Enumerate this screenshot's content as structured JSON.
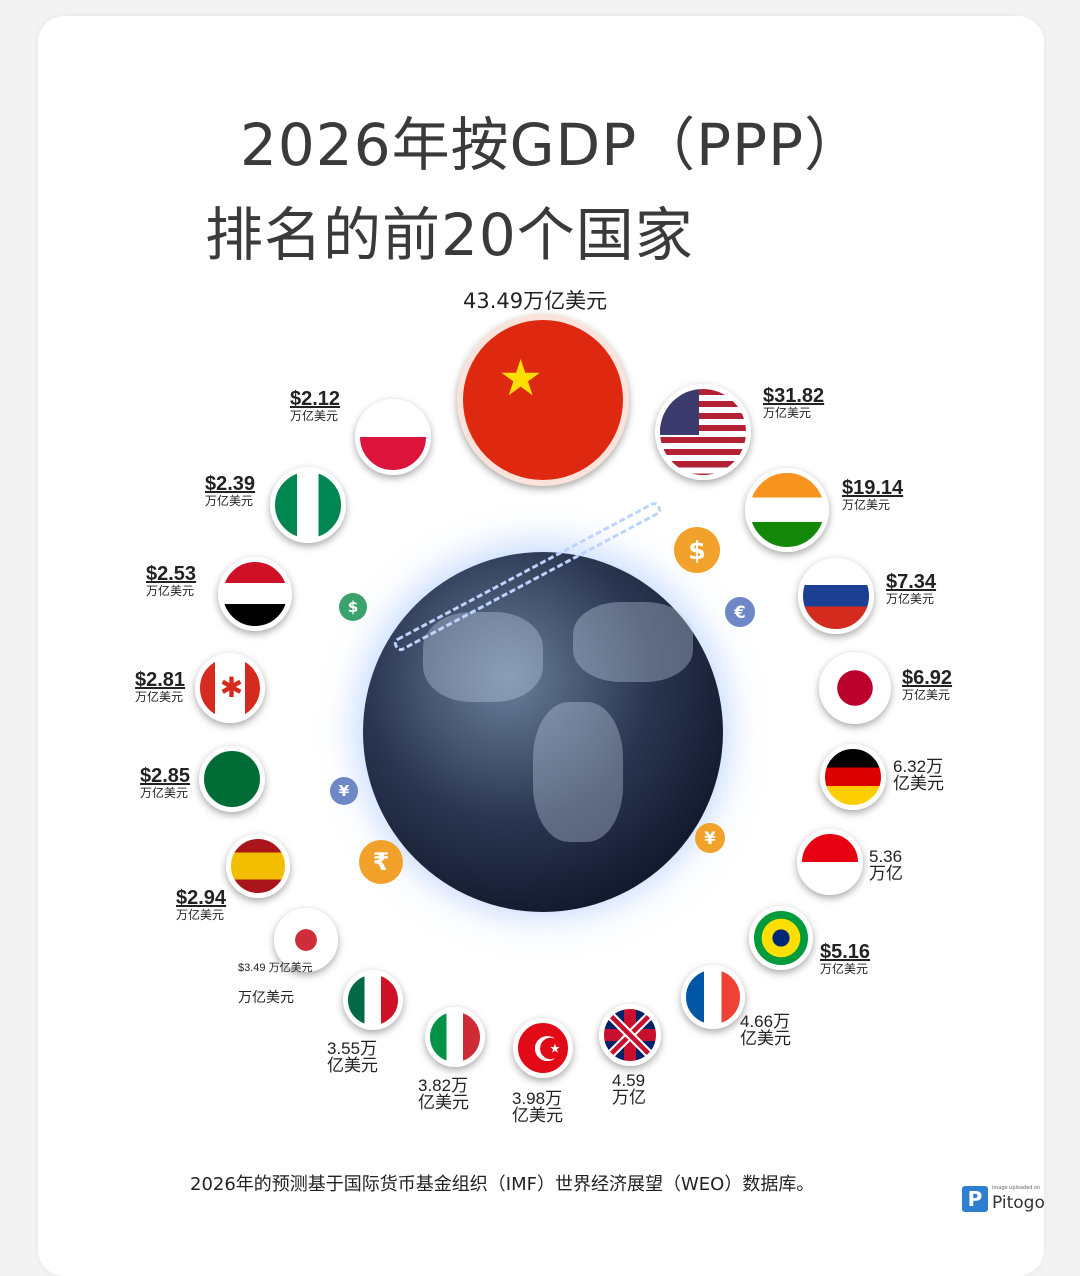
{
  "title_line1": "2026年按GDP（PPP）",
  "title_line2": "排名的前20个国家",
  "footer": "2026年的预测基于国际货币基金组织（IMF）世界经济展望（WEO）数据库。",
  "watermark": {
    "caption": "image uploaded on",
    "brand": "Pitogo"
  },
  "coins": [
    "$",
    "$",
    "€",
    "¥",
    "₹",
    "¥"
  ],
  "chart_data": {
    "type": "infographic-ranking",
    "title": "2026年按GDP（PPP）排名的前20个国家",
    "unit": "万亿美元",
    "items": [
      {
        "flag": "china",
        "value": 43.49,
        "label": "43.49万亿美元",
        "unit": ""
      },
      {
        "flag": "usa",
        "value": 31.82,
        "label": "$31.82",
        "unit": "万亿美元"
      },
      {
        "flag": "india",
        "value": 19.14,
        "label": "$19.14",
        "unit": "万亿美元"
      },
      {
        "flag": "russia",
        "value": 7.34,
        "label": "$7.34",
        "unit": "万亿美元"
      },
      {
        "flag": "japan",
        "value": 6.92,
        "label": "$6.92",
        "unit": "万亿美元"
      },
      {
        "flag": "germany",
        "value": 6.32,
        "label": "6.32万",
        "unit": "亿美元"
      },
      {
        "flag": "indonesia",
        "value": 5.36,
        "label": "5.36",
        "unit": "万亿"
      },
      {
        "flag": "brazil",
        "value": 5.16,
        "label": "$5.16",
        "unit": "万亿美元"
      },
      {
        "flag": "france",
        "value": 4.66,
        "label": "4.66万",
        "unit": "亿美元"
      },
      {
        "flag": "uk",
        "value": 4.59,
        "label": "4.59",
        "unit": "万亿"
      },
      {
        "flag": "turkey",
        "value": 3.98,
        "label": "3.98万",
        "unit": "亿美元"
      },
      {
        "flag": "italy",
        "value": 3.82,
        "label": "3.82万",
        "unit": "亿美元"
      },
      {
        "flag": "mexico",
        "value": 3.55,
        "label": "3.55万",
        "unit": "亿美元"
      },
      {
        "flag": "south-korea",
        "value": 3.49,
        "label": "$3.49 万亿美元",
        "unit": "万亿美元"
      },
      {
        "flag": "spain",
        "value": 2.94,
        "label": "$2.94",
        "unit": "万亿美元"
      },
      {
        "flag": "saudi-arabia",
        "value": 2.85,
        "label": "$2.85",
        "unit": "万亿美元"
      },
      {
        "flag": "canada",
        "value": 2.81,
        "label": "$2.81",
        "unit": "万亿美元"
      },
      {
        "flag": "egypt",
        "value": 2.53,
        "label": "$2.53",
        "unit": "万亿美元"
      },
      {
        "flag": "nigeria",
        "value": 2.39,
        "label": "$2.39",
        "unit": "万亿美元"
      },
      {
        "flag": "poland",
        "value": 2.12,
        "label": "$2.12",
        "unit": "万亿美元"
      }
    ]
  }
}
